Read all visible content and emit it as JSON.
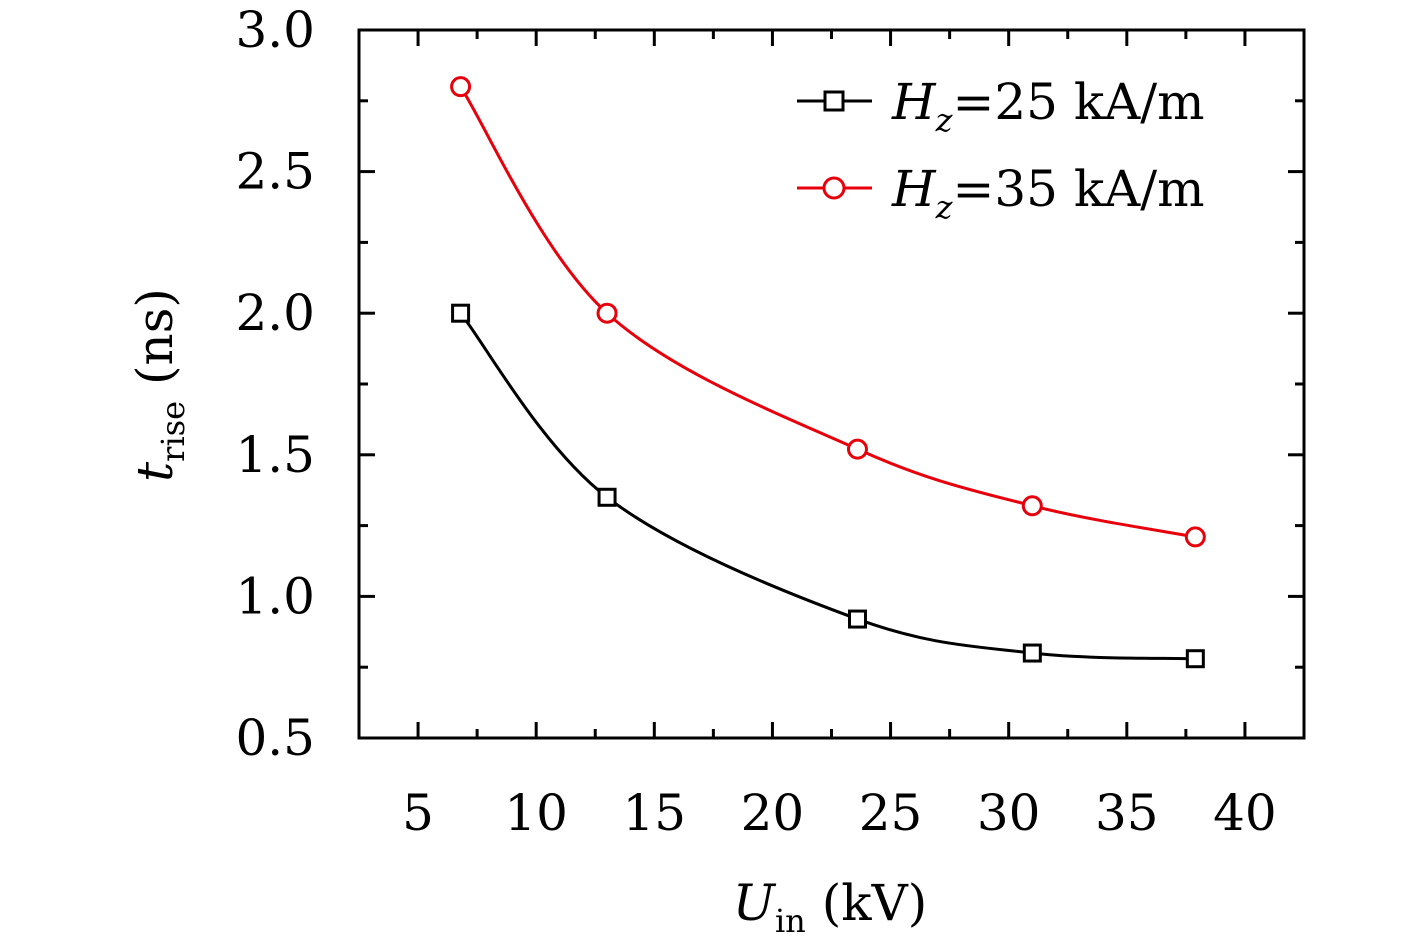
{
  "chart_data": {
    "type": "line",
    "title": "",
    "xlabel": {
      "symbol": "U",
      "subscript": "in",
      "unit": "(kV)"
    },
    "ylabel": {
      "symbol": "t",
      "subscript": "rise",
      "unit": "(ns)"
    },
    "xlim": [
      2.5,
      42.5
    ],
    "ylim": [
      0.5,
      3.0
    ],
    "xticks": [
      5,
      10,
      15,
      20,
      25,
      30,
      35,
      40
    ],
    "xtick_labels": [
      "5",
      "10",
      "15",
      "20",
      "25",
      "30",
      "35",
      "40"
    ],
    "yticks": [
      0.5,
      1.0,
      1.5,
      2.0,
      2.5,
      3.0
    ],
    "ytick_labels": [
      "0.5",
      "1.0",
      "1.5",
      "2.0",
      "2.5",
      "3.0"
    ],
    "grid": false,
    "legend_position": "top-right",
    "series": [
      {
        "name": "H_z=25 kA/m",
        "legend_symbol": "H",
        "legend_subscript": "z",
        "legend_rest": "=25 kA/m",
        "color": "#000000",
        "marker": "square",
        "x": [
          6.8,
          13.0,
          23.6,
          31.0,
          37.9
        ],
        "y": [
          2.0,
          1.35,
          0.92,
          0.8,
          0.78
        ]
      },
      {
        "name": "H_z=35 kA/m",
        "legend_symbol": "H",
        "legend_subscript": "z",
        "legend_rest": "=35 kA/m",
        "color": "#e8000b",
        "marker": "circle",
        "x": [
          6.8,
          13.0,
          23.6,
          31.0,
          37.9
        ],
        "y": [
          2.8,
          2.0,
          1.52,
          1.32,
          1.21
        ]
      }
    ]
  }
}
